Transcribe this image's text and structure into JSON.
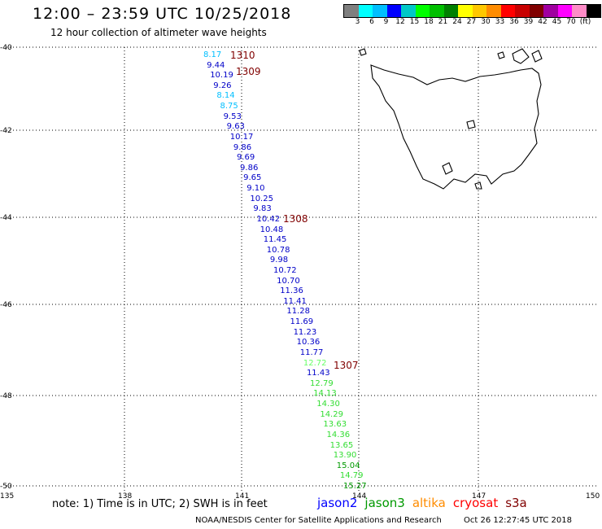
{
  "header": {
    "title": "12:00 – 23:59 UTC 10/25/2018",
    "subtitle": "12 hour collection of altimeter wave heights"
  },
  "legend": {
    "colors": [
      "#7f7f7f",
      "#00ffff",
      "#00bfff",
      "#0000ff",
      "#00c8c8",
      "#00ff00",
      "#00c000",
      "#008000",
      "#ffff00",
      "#ffc800",
      "#ff8c00",
      "#ff0000",
      "#c80000",
      "#800000",
      "#a000a0",
      "#ff00ff",
      "#ff8cc8",
      "#000000"
    ],
    "ticks": [
      "3",
      "6",
      "9",
      "12",
      "15",
      "18",
      "21",
      "24",
      "27",
      "30",
      "33",
      "36",
      "39",
      "42",
      "45",
      "70",
      "(ft)"
    ]
  },
  "axes": {
    "lat_labels": [
      "-40",
      "-42",
      "-44",
      "-46",
      "-48",
      "-50"
    ],
    "lon_labels": [
      "135",
      "138",
      "141",
      "144",
      "147",
      "150"
    ]
  },
  "passes": [
    "1310",
    "1309",
    "1308",
    "1307"
  ],
  "observations": [
    {
      "v": "8.17",
      "c": "#00bfff"
    },
    {
      "v": "9.44",
      "c": "#0000c8"
    },
    {
      "v": "10.19",
      "c": "#0000c8"
    },
    {
      "v": "9.26",
      "c": "#0000c8"
    },
    {
      "v": "8.14",
      "c": "#00bfff"
    },
    {
      "v": "8.75",
      "c": "#00bfff"
    },
    {
      "v": "9.53",
      "c": "#0000c8"
    },
    {
      "v": "9.63",
      "c": "#0000c8"
    },
    {
      "v": "10.17",
      "c": "#0000c8"
    },
    {
      "v": "9.86",
      "c": "#0000c8"
    },
    {
      "v": "9.69",
      "c": "#0000c8"
    },
    {
      "v": "9.86",
      "c": "#0000c8"
    },
    {
      "v": "9.65",
      "c": "#0000c8"
    },
    {
      "v": "9.10",
      "c": "#0000c8"
    },
    {
      "v": "10.25",
      "c": "#0000c8"
    },
    {
      "v": "9.83",
      "c": "#0000c8"
    },
    {
      "v": "10.42",
      "c": "#0000c8"
    },
    {
      "v": "10.48",
      "c": "#0000c8"
    },
    {
      "v": "11.45",
      "c": "#0000c8"
    },
    {
      "v": "10.78",
      "c": "#0000c8"
    },
    {
      "v": "9.98",
      "c": "#0000c8"
    },
    {
      "v": "10.72",
      "c": "#0000c8"
    },
    {
      "v": "10.70",
      "c": "#0000c8"
    },
    {
      "v": "11.36",
      "c": "#0000c8"
    },
    {
      "v": "11.41",
      "c": "#0000c8"
    },
    {
      "v": "11.28",
      "c": "#0000c8"
    },
    {
      "v": "11.69",
      "c": "#0000c8"
    },
    {
      "v": "11.23",
      "c": "#0000c8"
    },
    {
      "v": "10.36",
      "c": "#0000c8"
    },
    {
      "v": "11.77",
      "c": "#0000c8"
    },
    {
      "v": "12.72",
      "c": "#66ff66"
    },
    {
      "v": "11.43",
      "c": "#0000c8"
    },
    {
      "v": "12.79",
      "c": "#33dd33"
    },
    {
      "v": "14.13",
      "c": "#33dd33"
    },
    {
      "v": "14.30",
      "c": "#33dd33"
    },
    {
      "v": "14.29",
      "c": "#33dd33"
    },
    {
      "v": "13.63",
      "c": "#33dd33"
    },
    {
      "v": "14.36",
      "c": "#33dd33"
    },
    {
      "v": "13.65",
      "c": "#33dd33"
    },
    {
      "v": "13.90",
      "c": "#33dd33"
    },
    {
      "v": "15.04",
      "c": "#009900"
    },
    {
      "v": "14.79",
      "c": "#33dd33"
    },
    {
      "v": "15.27",
      "c": "#009900"
    }
  ],
  "note": "note:  1) Time is in UTC;  2) SWH is in feet",
  "satellites": [
    {
      "name": "jason2",
      "color": "#0000ff"
    },
    {
      "name": "jason3",
      "color": "#009900"
    },
    {
      "name": "altika",
      "color": "#ff8c00"
    },
    {
      "name": "cryosat",
      "color": "#ff0000"
    },
    {
      "name": "s3a",
      "color": "#800000"
    }
  ],
  "footer": {
    "credit": "NOAA/NESDIS Center for Satellite Applications and Research",
    "timestamp": "Oct 26 12:27:45 UTC 2018"
  }
}
